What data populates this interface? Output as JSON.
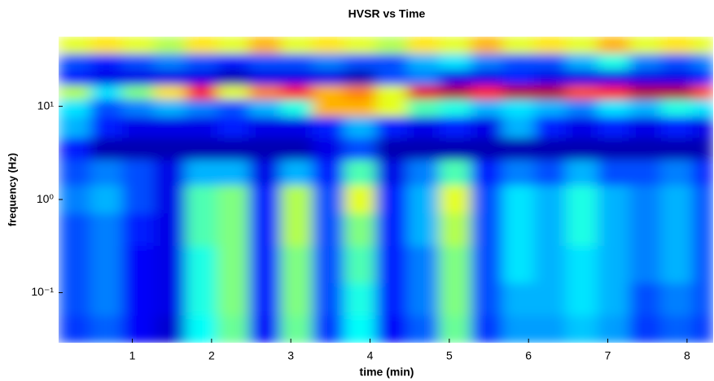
{
  "chart_data": {
    "type": "heatmap",
    "title": "HVSR vs Time",
    "xlabel": "time (min)",
    "ylabel": "frequency (Hz)",
    "colormap": "jet",
    "yscale": "log",
    "zlim": [
      0,
      1
    ],
    "x": [
      0.27,
      0.67,
      1.07,
      1.47,
      1.87,
      2.27,
      2.67,
      3.07,
      3.47,
      3.87,
      4.27,
      4.67,
      5.07,
      5.47,
      5.87,
      6.27,
      6.67,
      7.07,
      7.47,
      7.87,
      8.27
    ],
    "y": [
      45,
      30,
      20,
      14,
      10,
      6,
      3.5,
      2,
      1,
      0.5,
      0.2,
      0.08,
      0.04
    ],
    "z": [
      [
        0.6,
        0.65,
        0.6,
        0.55,
        0.65,
        0.6,
        0.7,
        0.6,
        0.65,
        0.6,
        0.55,
        0.65,
        0.6,
        0.7,
        0.6,
        0.65,
        0.6,
        0.7,
        0.6,
        0.65,
        0.6
      ],
      [
        0.2,
        0.15,
        0.2,
        0.25,
        0.2,
        0.15,
        0.2,
        0.2,
        0.25,
        0.2,
        0.2,
        0.3,
        0.35,
        0.25,
        0.2,
        0.2,
        0.3,
        0.4,
        0.25,
        0.2,
        0.25
      ],
      [
        0.15,
        0.1,
        0.1,
        0.1,
        0.1,
        0.05,
        0.1,
        0.1,
        0.1,
        0.05,
        0.2,
        0.25,
        0.1,
        0.1,
        0.15,
        0.1,
        0.1,
        0.1,
        0.1,
        0.1,
        0.15
      ],
      [
        0.55,
        0.35,
        0.5,
        0.65,
        0.85,
        0.6,
        0.75,
        0.85,
        0.7,
        0.75,
        0.6,
        0.9,
        0.95,
        0.85,
        0.95,
        0.95,
        0.8,
        0.85,
        0.95,
        0.95,
        0.8
      ],
      [
        0.35,
        0.2,
        0.25,
        0.3,
        0.25,
        0.2,
        0.3,
        0.4,
        0.7,
        0.7,
        0.6,
        0.45,
        0.4,
        0.3,
        0.35,
        0.3,
        0.25,
        0.35,
        0.3,
        0.4,
        0.35
      ],
      [
        0.3,
        0.15,
        0.1,
        0.1,
        0.1,
        0.15,
        0.1,
        0.1,
        0.15,
        0.3,
        0.15,
        0.1,
        0.15,
        0.1,
        0.3,
        0.15,
        0.1,
        0.15,
        0.1,
        0.15,
        0.1
      ],
      [
        0.15,
        0.05,
        0.05,
        0.05,
        0.05,
        0.05,
        0.05,
        0.05,
        0.1,
        0.2,
        0.05,
        0.05,
        0.05,
        0.05,
        0.05,
        0.05,
        0.05,
        0.05,
        0.05,
        0.05,
        0.05
      ],
      [
        0.2,
        0.25,
        0.2,
        0.1,
        0.3,
        0.3,
        0.1,
        0.3,
        0.15,
        0.45,
        0.1,
        0.25,
        0.45,
        0.15,
        0.25,
        0.2,
        0.3,
        0.2,
        0.2,
        0.25,
        0.15
      ],
      [
        0.25,
        0.3,
        0.2,
        0.1,
        0.45,
        0.5,
        0.15,
        0.55,
        0.2,
        0.6,
        0.15,
        0.3,
        0.6,
        0.2,
        0.35,
        0.3,
        0.4,
        0.3,
        0.25,
        0.3,
        0.2
      ],
      [
        0.2,
        0.25,
        0.15,
        0.1,
        0.45,
        0.5,
        0.15,
        0.55,
        0.2,
        0.5,
        0.15,
        0.3,
        0.55,
        0.2,
        0.35,
        0.3,
        0.4,
        0.3,
        0.25,
        0.3,
        0.2
      ],
      [
        0.2,
        0.25,
        0.12,
        0.1,
        0.4,
        0.5,
        0.15,
        0.5,
        0.2,
        0.45,
        0.15,
        0.25,
        0.5,
        0.2,
        0.35,
        0.3,
        0.35,
        0.3,
        0.25,
        0.3,
        0.2
      ],
      [
        0.2,
        0.25,
        0.12,
        0.1,
        0.4,
        0.5,
        0.15,
        0.5,
        0.2,
        0.4,
        0.15,
        0.25,
        0.5,
        0.2,
        0.3,
        0.3,
        0.35,
        0.3,
        0.2,
        0.25,
        0.2
      ],
      [
        0.18,
        0.22,
        0.12,
        0.08,
        0.38,
        0.48,
        0.12,
        0.48,
        0.18,
        0.38,
        0.12,
        0.22,
        0.48,
        0.18,
        0.28,
        0.28,
        0.32,
        0.28,
        0.18,
        0.22,
        0.18
      ]
    ],
    "xlim": [
      0.07,
      8.33
    ],
    "xticks": [
      1,
      2,
      3,
      4,
      5,
      6,
      7,
      8
    ],
    "ylim": [
      0.029,
      56
    ],
    "yticks": [
      {
        "value": 0.1,
        "label": "10⁻¹"
      },
      {
        "value": 1,
        "label": "10⁰"
      },
      {
        "value": 10,
        "label": "10¹"
      }
    ]
  }
}
